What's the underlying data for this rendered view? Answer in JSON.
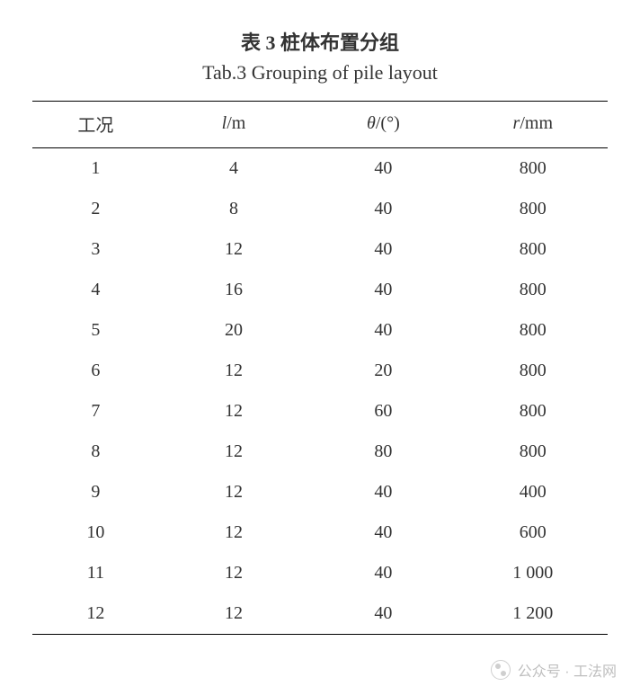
{
  "title_cn": "表 3  桩体布置分组",
  "title_en": "Tab.3  Grouping of pile layout",
  "table": {
    "columns": [
      {
        "label": "工况",
        "html": "工况"
      },
      {
        "label": "l/m",
        "html": "<span class=\"italic\">l</span>/m"
      },
      {
        "label": "θ/(°)",
        "html": "<span class=\"italic\">θ</span>/(°)"
      },
      {
        "label": "r/mm",
        "html": "<span class=\"italic\">r</span>/mm"
      }
    ],
    "rows": [
      [
        "1",
        "4",
        "40",
        "800"
      ],
      [
        "2",
        "8",
        "40",
        "800"
      ],
      [
        "3",
        "12",
        "40",
        "800"
      ],
      [
        "4",
        "16",
        "40",
        "800"
      ],
      [
        "5",
        "20",
        "40",
        "800"
      ],
      [
        "6",
        "12",
        "20",
        "800"
      ],
      [
        "7",
        "12",
        "60",
        "800"
      ],
      [
        "8",
        "12",
        "80",
        "800"
      ],
      [
        "9",
        "12",
        "40",
        "400"
      ],
      [
        "10",
        "12",
        "40",
        "600"
      ],
      [
        "11",
        "12",
        "40",
        "1 000"
      ],
      [
        "12",
        "12",
        "40",
        "1 200"
      ]
    ],
    "col_classes": [
      "col-1",
      "col-2",
      "col-3",
      "col-4"
    ],
    "text_color": "#333333",
    "border_color": "#000000",
    "background_color": "#ffffff",
    "font_size_body": 20,
    "font_size_title": 22
  },
  "watermark": {
    "text": "公众号 · 工法网",
    "color": "#bfbfbf"
  }
}
